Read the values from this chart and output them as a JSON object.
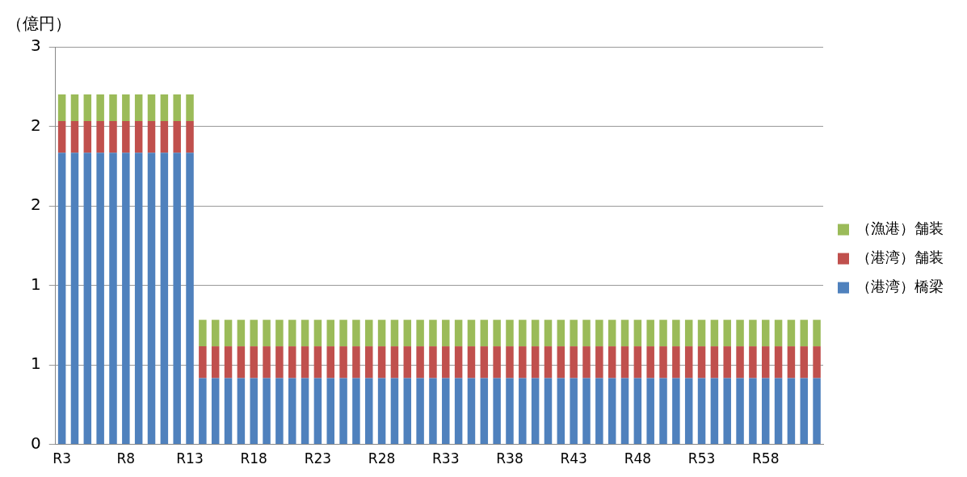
{
  "chart_data": {
    "type": "bar",
    "stacked": true,
    "ylabel": "（億円）",
    "categories": [
      "R3",
      null,
      null,
      null,
      null,
      "R8",
      null,
      null,
      null,
      null,
      "R13",
      null,
      null,
      null,
      null,
      "R18",
      null,
      null,
      null,
      null,
      "R23",
      null,
      null,
      null,
      null,
      "R28",
      null,
      null,
      null,
      null,
      "R33",
      null,
      null,
      null,
      null,
      "R38",
      null,
      null,
      null,
      null,
      "R43",
      null,
      null,
      null,
      null,
      "R48",
      null,
      null,
      null,
      null,
      "R53",
      null,
      null,
      null,
      null,
      "R58",
      null,
      null,
      null,
      null
    ],
    "series": [
      {
        "name": "（港湾）橋梁",
        "color": "#4f81bd",
        "values": [
          2.2,
          2.2,
          2.2,
          2.2,
          2.2,
          2.2,
          2.2,
          2.2,
          2.2,
          2.2,
          2.2,
          0.5,
          0.5,
          0.5,
          0.5,
          0.5,
          0.5,
          0.5,
          0.5,
          0.5,
          0.5,
          0.5,
          0.5,
          0.5,
          0.5,
          0.5,
          0.5,
          0.5,
          0.5,
          0.5,
          0.5,
          0.5,
          0.5,
          0.5,
          0.5,
          0.5,
          0.5,
          0.5,
          0.5,
          0.5,
          0.5,
          0.5,
          0.5,
          0.5,
          0.5,
          0.5,
          0.5,
          0.5,
          0.5,
          0.5,
          0.5,
          0.5,
          0.5,
          0.5,
          0.5,
          0.5,
          0.5,
          0.5,
          0.5,
          0.5
        ]
      },
      {
        "name": "（港湾）舗装",
        "color": "#c0504d",
        "values": [
          0.24,
          0.24,
          0.24,
          0.24,
          0.24,
          0.24,
          0.24,
          0.24,
          0.24,
          0.24,
          0.24,
          0.24,
          0.24,
          0.24,
          0.24,
          0.24,
          0.24,
          0.24,
          0.24,
          0.24,
          0.24,
          0.24,
          0.24,
          0.24,
          0.24,
          0.24,
          0.24,
          0.24,
          0.24,
          0.24,
          0.24,
          0.24,
          0.24,
          0.24,
          0.24,
          0.24,
          0.24,
          0.24,
          0.24,
          0.24,
          0.24,
          0.24,
          0.24,
          0.24,
          0.24,
          0.24,
          0.24,
          0.24,
          0.24,
          0.24,
          0.24,
          0.24,
          0.24,
          0.24,
          0.24,
          0.24,
          0.24,
          0.24,
          0.24,
          0.24
        ]
      },
      {
        "name": "（漁港）舗装",
        "color": "#9bbb59",
        "values": [
          0.2,
          0.2,
          0.2,
          0.2,
          0.2,
          0.2,
          0.2,
          0.2,
          0.2,
          0.2,
          0.2,
          0.2,
          0.2,
          0.2,
          0.2,
          0.2,
          0.2,
          0.2,
          0.2,
          0.2,
          0.2,
          0.2,
          0.2,
          0.2,
          0.2,
          0.2,
          0.2,
          0.2,
          0.2,
          0.2,
          0.2,
          0.2,
          0.2,
          0.2,
          0.2,
          0.2,
          0.2,
          0.2,
          0.2,
          0.2,
          0.2,
          0.2,
          0.2,
          0.2,
          0.2,
          0.2,
          0.2,
          0.2,
          0.2,
          0.2,
          0.2,
          0.2,
          0.2,
          0.2,
          0.2,
          0.2,
          0.2,
          0.2,
          0.2,
          0.2
        ]
      }
    ],
    "ylim": [
      0,
      3
    ],
    "yticks": [
      0,
      {
        "value": 0.6,
        "label": "1"
      },
      {
        "value": 1.2,
        "label": "1"
      },
      {
        "value": 1.8,
        "label": "2"
      },
      {
        "value": 2.4,
        "label": "2"
      },
      3
    ],
    "grid": "y",
    "legend": "right"
  }
}
